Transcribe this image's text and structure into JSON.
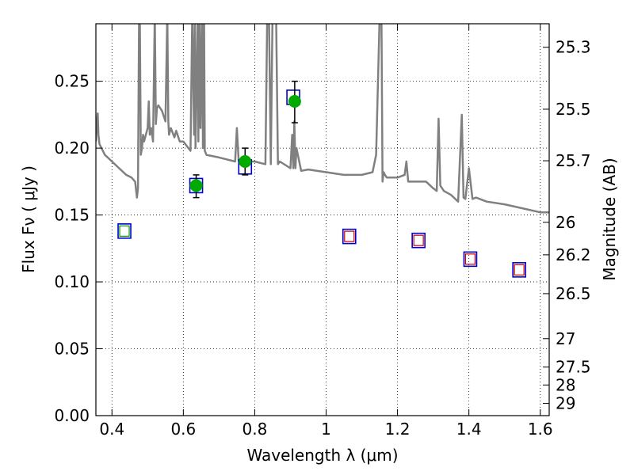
{
  "chart_data": {
    "type": "scatter",
    "xlabel": "Wavelength  λ (μm)",
    "ylabel": "Flux  Fν  ( μJy )",
    "ylabel_right": "Magnitude (AB)",
    "xlim": [
      0.355,
      1.625
    ],
    "ylim": [
      0.0,
      0.293
    ],
    "grid": true,
    "x_ticks": [
      0.4,
      0.6,
      0.8,
      1.0,
      1.2,
      1.4,
      1.6
    ],
    "x_tick_labels": [
      "0.4",
      "0.6",
      "0.8",
      "1",
      "1.2",
      "1.4",
      "1.6"
    ],
    "y_ticks": [
      0.0,
      0.05,
      0.1,
      0.15,
      0.2,
      0.25
    ],
    "y_tick_labels": [
      "0.00",
      "0.05",
      "0.10",
      "0.15",
      "0.20",
      "0.25"
    ],
    "right_axis_ticks": [
      {
        "mag": 25.3,
        "label": "25.3"
      },
      {
        "mag": 25.5,
        "label": "25.5"
      },
      {
        "mag": 25.7,
        "label": "25.7"
      },
      {
        "mag": 26.0,
        "label": "26"
      },
      {
        "mag": 26.2,
        "label": "26.2"
      },
      {
        "mag": 26.5,
        "label": "26.5"
      },
      {
        "mag": 27.0,
        "label": "27"
      },
      {
        "mag": 27.5,
        "label": "27.5"
      },
      {
        "mag": 28.0,
        "label": "28"
      },
      {
        "mag": 29.0,
        "label": "29"
      }
    ],
    "series": [
      {
        "kind": "line",
        "color": "#808080",
        "x": [
          0.355,
          0.358,
          0.36,
          0.362,
          0.365,
          0.38,
          0.4,
          0.42,
          0.44,
          0.455,
          0.465,
          0.47,
          0.473,
          0.476,
          0.478,
          0.481,
          0.484,
          0.487,
          0.49,
          0.5,
          0.503,
          0.506,
          0.51,
          0.515,
          0.52,
          0.523,
          0.526,
          0.53,
          0.54,
          0.55,
          0.555,
          0.558,
          0.56,
          0.565,
          0.575,
          0.58,
          0.59,
          0.6,
          0.62,
          0.625,
          0.63,
          0.632,
          0.634,
          0.64,
          0.642,
          0.645,
          0.648,
          0.652,
          0.655,
          0.658,
          0.66,
          0.665,
          0.7,
          0.745,
          0.75,
          0.755,
          0.8,
          0.83,
          0.835,
          0.84,
          0.845,
          0.85,
          0.86,
          0.865,
          0.87,
          0.9,
          0.905,
          0.908,
          0.911,
          0.914,
          0.917,
          0.93,
          0.95,
          1.0,
          1.05,
          1.1,
          1.13,
          1.14,
          1.15,
          1.152,
          1.155,
          1.158,
          1.161,
          1.165,
          1.17,
          1.2,
          1.22,
          1.225,
          1.23,
          1.28,
          1.3,
          1.31,
          1.315,
          1.32,
          1.33,
          1.35,
          1.37,
          1.38,
          1.385,
          1.39,
          1.4,
          1.41,
          1.42,
          1.45,
          1.5,
          1.55,
          1.6,
          1.625
        ],
        "y": [
          0.205,
          0.22,
          0.226,
          0.21,
          0.203,
          0.195,
          0.19,
          0.185,
          0.18,
          0.178,
          0.175,
          0.163,
          0.17,
          0.3,
          0.3,
          0.195,
          0.2,
          0.21,
          0.205,
          0.215,
          0.235,
          0.21,
          0.215,
          0.205,
          0.3,
          0.218,
          0.23,
          0.232,
          0.228,
          0.22,
          0.3,
          0.22,
          0.21,
          0.215,
          0.208,
          0.213,
          0.205,
          0.205,
          0.198,
          0.3,
          0.21,
          0.3,
          0.2,
          0.3,
          0.205,
          0.3,
          0.215,
          0.3,
          0.2,
          0.3,
          0.198,
          0.195,
          0.193,
          0.19,
          0.215,
          0.19,
          0.19,
          0.188,
          0.3,
          0.3,
          0.188,
          0.3,
          0.3,
          0.188,
          0.19,
          0.185,
          0.21,
          0.185,
          0.22,
          0.185,
          0.2,
          0.183,
          0.184,
          0.182,
          0.18,
          0.18,
          0.182,
          0.195,
          0.3,
          0.3,
          0.3,
          0.175,
          0.182,
          0.18,
          0.178,
          0.178,
          0.18,
          0.19,
          0.175,
          0.175,
          0.17,
          0.168,
          0.222,
          0.172,
          0.168,
          0.165,
          0.16,
          0.225,
          0.163,
          0.162,
          0.185,
          0.162,
          0.163,
          0.16,
          0.158,
          0.155,
          0.152,
          0.152
        ]
      },
      {
        "kind": "squares-blue",
        "color": "#0000cc",
        "x": [
          0.435,
          0.636,
          0.773,
          0.908,
          1.065,
          1.259,
          1.404,
          1.541
        ],
        "y": [
          0.138,
          0.172,
          0.186,
          0.238,
          0.134,
          0.131,
          0.117,
          0.109
        ]
      },
      {
        "kind": "squares-green",
        "color": "#009900",
        "x": [
          0.435
        ],
        "y": [
          0.138
        ]
      },
      {
        "kind": "squares-red",
        "color": "#cc0000",
        "x": [
          1.065,
          1.259,
          1.404,
          1.541
        ],
        "y": [
          0.134,
          0.131,
          0.117,
          0.109
        ]
      },
      {
        "kind": "points",
        "color": "#00aa00",
        "x": [
          0.636,
          0.773,
          0.912
        ],
        "y": [
          0.172,
          0.19,
          0.235
        ],
        "yerr_lo": [
          0.163,
          0.18,
          0.219
        ],
        "yerr_hi": [
          0.18,
          0.2,
          0.25
        ]
      }
    ]
  }
}
